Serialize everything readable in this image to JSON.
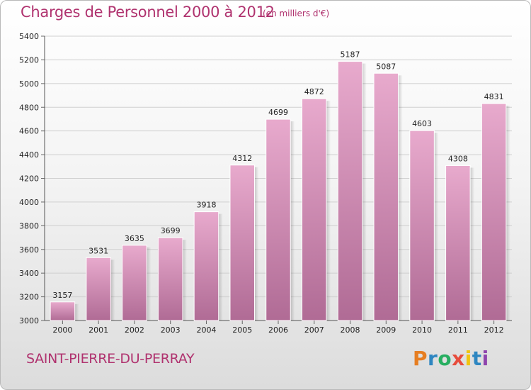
{
  "header": {
    "title": "Charges de Personnel 2000 à 2012",
    "subtitle": "(en milliers d'€)"
  },
  "footer": {
    "city": "SAINT-PIERRE-DU-PERRAY",
    "logo_text": "Proxiti",
    "logo_letters": [
      "P",
      "r",
      "o",
      "x",
      "i",
      "t",
      "i"
    ],
    "logo_colors": [
      "#e67e22",
      "#2e86c1",
      "#27ae60",
      "#e74c3c",
      "#f1c40f",
      "#2e86c1",
      "#8e44ad"
    ]
  },
  "colors": {
    "bar_top": "#e8aacd",
    "bar_bottom": "#b06b95",
    "accent": "#b0336f"
  },
  "chart_data": {
    "type": "bar",
    "title": "Charges de Personnel 2000 à 2012",
    "subtitle": "(en milliers d'€)",
    "categories": [
      "2000",
      "2001",
      "2002",
      "2003",
      "2004",
      "2005",
      "2006",
      "2007",
      "2008",
      "2009",
      "2010",
      "2011",
      "2012"
    ],
    "values": [
      3157,
      3531,
      3635,
      3699,
      3918,
      4312,
      4699,
      4872,
      5187,
      5087,
      4603,
      4308,
      4831
    ],
    "ylim": [
      3000,
      5400
    ],
    "yticks": [
      3000,
      3200,
      3400,
      3600,
      3800,
      4000,
      4200,
      4400,
      4600,
      4800,
      5000,
      5200,
      5400
    ],
    "grid": true,
    "xlabel": "",
    "ylabel": ""
  }
}
